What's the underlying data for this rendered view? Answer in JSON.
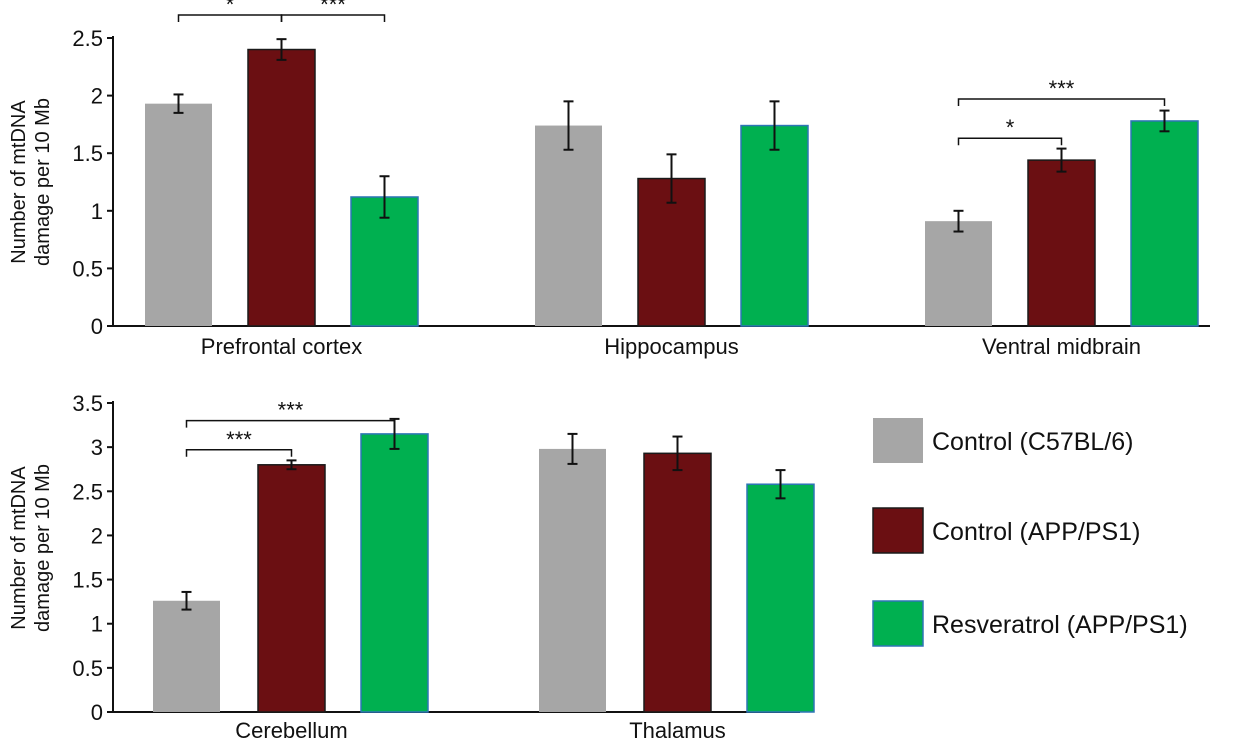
{
  "colors": {
    "control_c57": "#a6a6a6",
    "control_app": "#6b0f12",
    "resveratrol": "#00b050",
    "axis": "#111111"
  },
  "legend": {
    "items": [
      {
        "label": "Control (C57BL/6)",
        "color": "#a6a6a6"
      },
      {
        "label": "Control (APP/PS1)",
        "color": "#6b0f12"
      },
      {
        "label": "Resveratrol (APP/PS1)",
        "color": "#00b050"
      }
    ]
  },
  "chart_data": [
    {
      "type": "bar",
      "ylabel_lines": [
        "Number of mtDNA",
        "damage per 10 Mb"
      ],
      "ylim": [
        0,
        2.5
      ],
      "yticks": [
        "0",
        "0.5",
        "1",
        "1.5",
        "2",
        "2.5"
      ],
      "categories": [
        "Prefrontal cortex",
        "Hippocampus",
        "Ventral midbrain"
      ],
      "series": [
        {
          "name": "Control (C57BL/6)",
          "values": [
            1.93,
            1.74,
            0.91
          ],
          "errors": [
            0.08,
            0.21,
            0.09
          ]
        },
        {
          "name": "Control (APP/PS1)",
          "values": [
            2.4,
            1.28,
            1.44
          ],
          "errors": [
            0.09,
            0.21,
            0.1
          ]
        },
        {
          "name": "Resveratrol (APP/PS1)",
          "values": [
            1.12,
            1.74,
            1.78
          ],
          "errors": [
            0.18,
            0.21,
            0.09
          ]
        }
      ],
      "significance": [
        {
          "category": 0,
          "from": 0,
          "to": 1,
          "label": "*",
          "y": 2.7
        },
        {
          "category": 0,
          "from": 1,
          "to": 2,
          "label": "***",
          "y": 2.7
        },
        {
          "category": 2,
          "from": 0,
          "to": 1,
          "label": "*",
          "y": 1.63
        },
        {
          "category": 2,
          "from": 0,
          "to": 2,
          "label": "***",
          "y": 1.97
        }
      ]
    },
    {
      "type": "bar",
      "ylabel_lines": [
        "Number of mtDNA",
        "damage per 10 Mb"
      ],
      "ylim": [
        0,
        3.5
      ],
      "yticks": [
        "0",
        "0.5",
        "1",
        "1.5",
        "2",
        "2.5",
        "3",
        "3.5"
      ],
      "categories": [
        "Cerebellum",
        "Thalamus"
      ],
      "series": [
        {
          "name": "Control (C57BL/6)",
          "values": [
            1.26,
            2.98
          ],
          "errors": [
            0.1,
            0.17
          ]
        },
        {
          "name": "Control (APP/PS1)",
          "values": [
            2.8,
            2.93
          ],
          "errors": [
            0.05,
            0.19
          ]
        },
        {
          "name": "Resveratrol (APP/PS1)",
          "values": [
            3.15,
            2.58
          ],
          "errors": [
            0.17,
            0.16
          ]
        }
      ],
      "significance": [
        {
          "category": 0,
          "from": 0,
          "to": 1,
          "label": "***",
          "y": 2.97
        },
        {
          "category": 0,
          "from": 0,
          "to": 2,
          "label": "***",
          "y": 3.3
        }
      ]
    }
  ]
}
